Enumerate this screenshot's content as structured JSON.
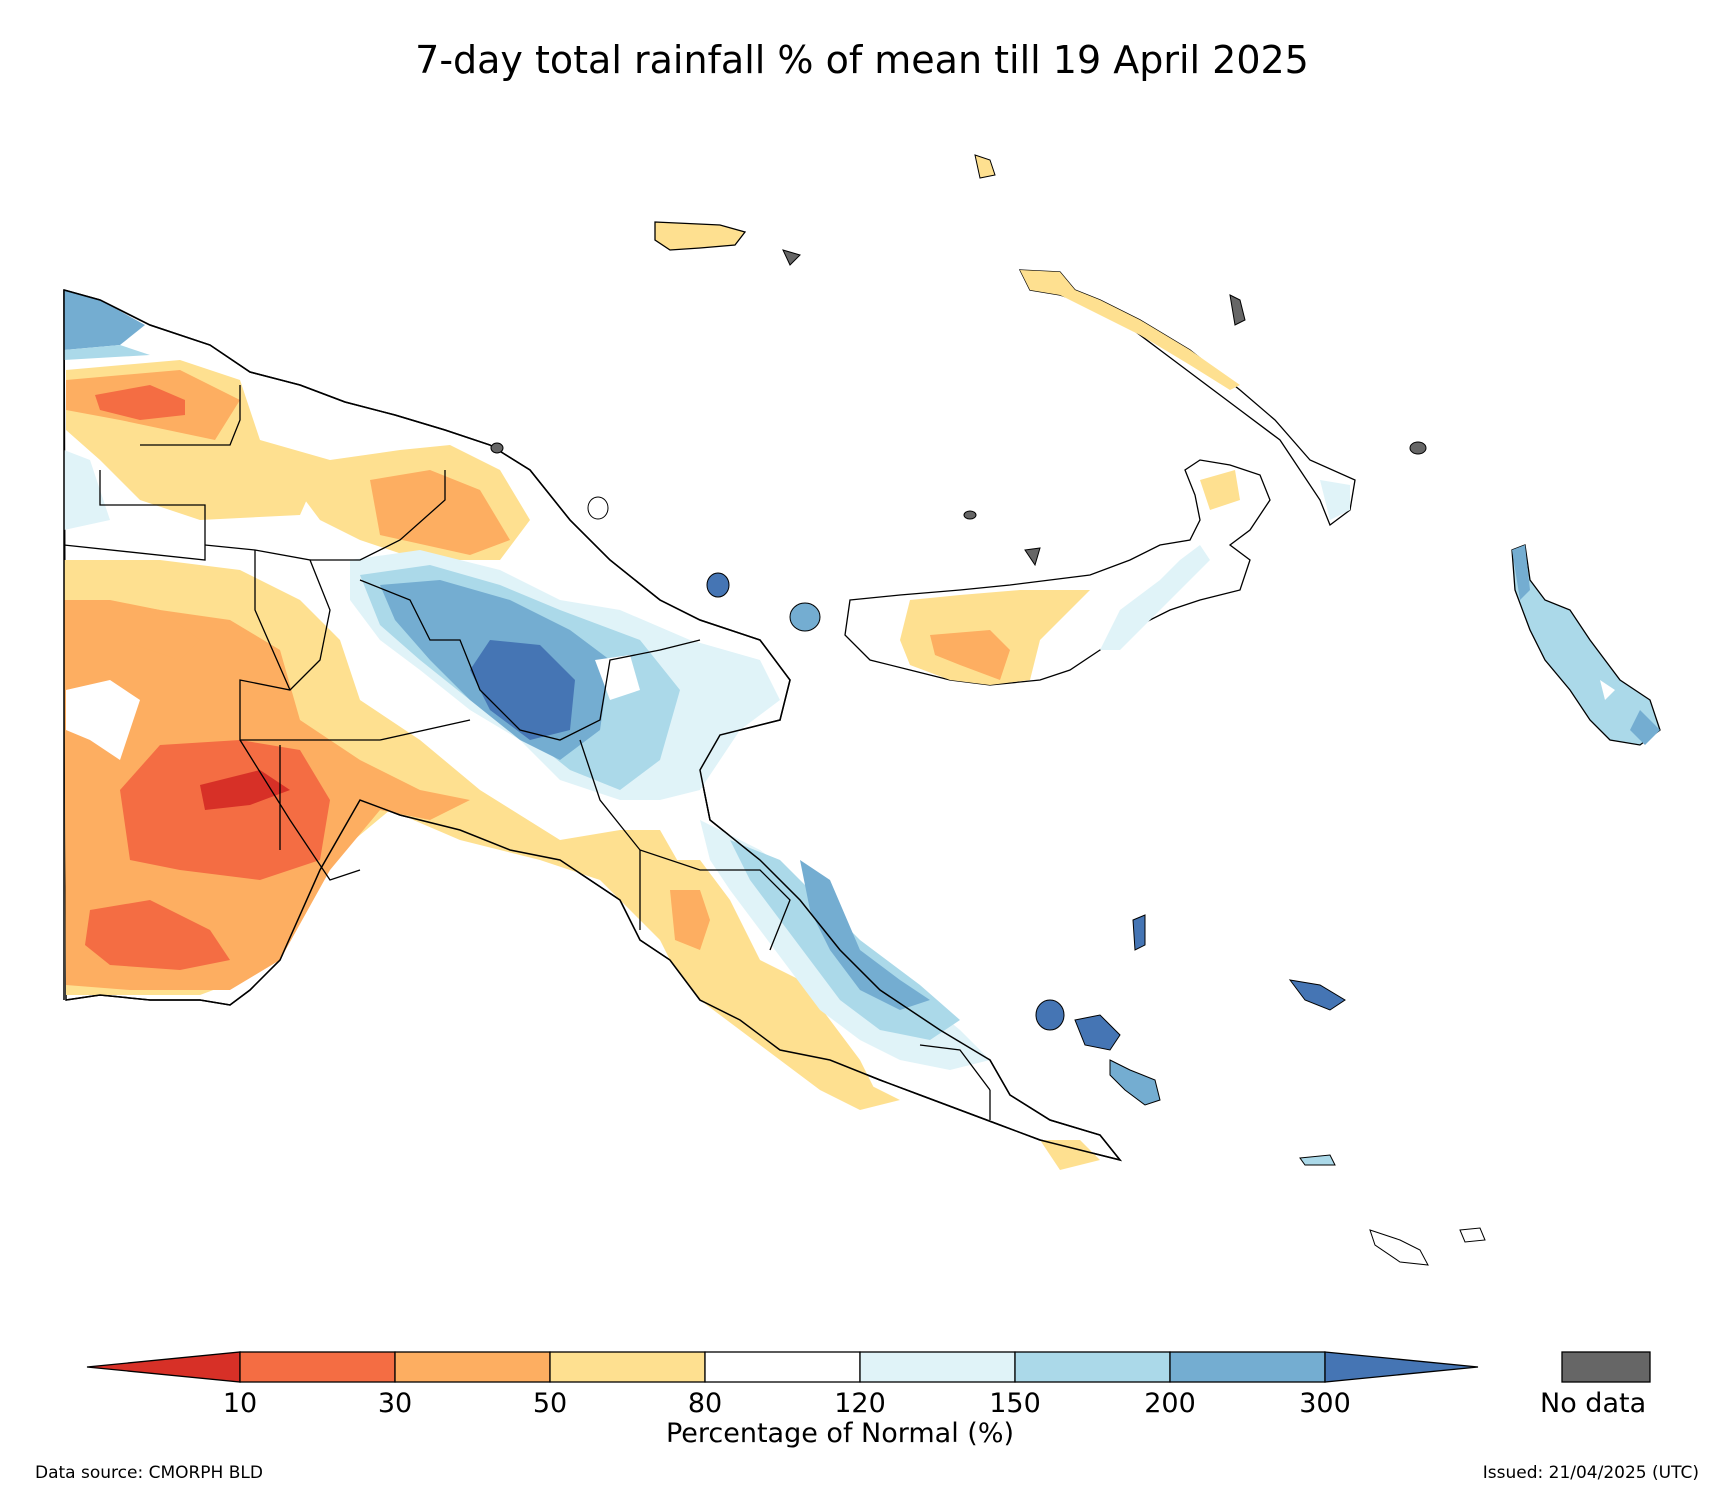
{
  "title": "7-day total rainfall % of mean till 19 April 2025",
  "colorbar": {
    "label": "Percentage of Normal (%)",
    "ticks": [
      "10",
      "30",
      "50",
      "80",
      "120",
      "150",
      "200",
      "300"
    ],
    "colors": {
      "below_10": "#d73027",
      "10_30": "#f46d43",
      "30_50": "#fdae61",
      "50_80": "#fee090",
      "80_120": "#ffffff",
      "120_150": "#e0f3f8",
      "150_200": "#abd9e9",
      "200_300": "#74add1",
      "above_300": "#4575b4"
    }
  },
  "nodata": {
    "label": "No data",
    "color": "#666666"
  },
  "footer": {
    "source": "Data source: CMORPH BLD",
    "issued": "Issued: 21/04/2025 (UTC)"
  }
}
